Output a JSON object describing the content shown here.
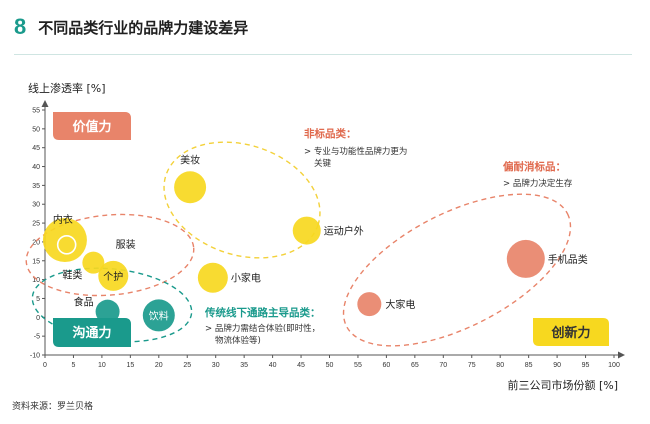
{
  "header": {
    "number": "8",
    "title": "不同品类行业的品牌力建设差异"
  },
  "source": "资料来源：罗兰贝格",
  "chart_data": {
    "type": "scatter",
    "ylabel": "线上渗透率 [%]",
    "xlabel": "前三公司市场份额 [%]",
    "xlim": [
      0,
      100
    ],
    "ylim": [
      -10,
      55
    ],
    "xticks": [
      0,
      5,
      10,
      15,
      20,
      25,
      30,
      35,
      40,
      45,
      50,
      55,
      60,
      65,
      70,
      75,
      80,
      85,
      90,
      95,
      100
    ],
    "yticks": [
      -10,
      -5,
      0,
      5,
      10,
      15,
      20,
      25,
      30,
      35,
      40,
      45,
      50,
      55
    ],
    "points": [
      {
        "label": "美妆",
        "x": 25.5,
        "y": 34.5,
        "color": "#f7d81f"
      },
      {
        "label": "运动户外",
        "x": 46,
        "y": 23,
        "color": "#f7d81f"
      },
      {
        "label": "内衣",
        "x": 3.5,
        "y": 20.5,
        "color": "#f7d81f"
      },
      {
        "label": "服装",
        "x": 7.5,
        "y": 19.5,
        "color": "#f7d81f"
      },
      {
        "label": "鞋类",
        "x": 8.5,
        "y": 14.5,
        "color": "#f7d81f"
      },
      {
        "label": "个护",
        "x": 12,
        "y": 11,
        "color": "#f7d81f"
      },
      {
        "label": "小家电",
        "x": 29.5,
        "y": 10.5,
        "color": "#f7d81f"
      },
      {
        "label": "食品",
        "x": 11,
        "y": 1.5,
        "color": "#1a9a8c"
      },
      {
        "label": "饮料",
        "x": 20,
        "y": 0.5,
        "color": "#1a9a8c"
      },
      {
        "label": "手机品类",
        "x": 84.5,
        "y": 15.5,
        "color": "#e8846a"
      },
      {
        "label": "大家电",
        "x": 57,
        "y": 3.5,
        "color": "#e8846a"
      }
    ],
    "quadrant_tags": [
      {
        "text": "价值力",
        "color": "#e8846a"
      },
      {
        "text": "沟通力",
        "color": "#1a9a8c"
      },
      {
        "text": "创新力",
        "color": "#f7d81f"
      }
    ],
    "annotations": [
      {
        "title": "非标品类：",
        "note": "> 专业与功能性品牌力更为关键",
        "color": "#e06a4e"
      },
      {
        "title": "偏耐消标品：",
        "note": "> 品牌力决定生存",
        "color": "#e06a4e"
      },
      {
        "title": "传统线下通路主导品类：",
        "note": "> 品牌力需结合体验(即时性，物流体验等)",
        "color": "#1a9a8c"
      }
    ]
  }
}
